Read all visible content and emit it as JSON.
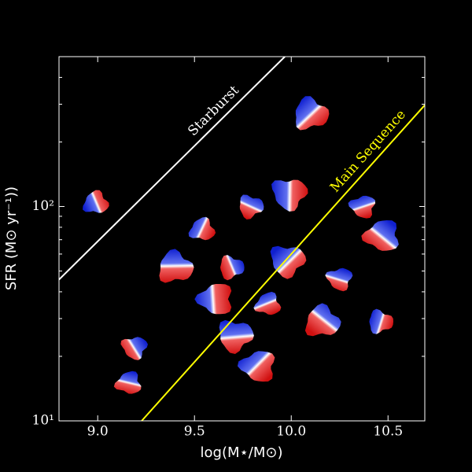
{
  "chart_data": {
    "type": "scatter",
    "x_label": "log(M⋆/M⊙)",
    "y_label": "SFR (M⊙ yr⁻¹))",
    "xlim": [
      8.8,
      10.69
    ],
    "ylim": [
      10,
      500
    ],
    "log_y": true,
    "xticks": [
      {
        "value": 9,
        "label": "9.0"
      },
      9.5,
      {
        "value": 10,
        "label": "10.0"
      },
      10.5
    ],
    "yticks": [
      {
        "value": 10,
        "label": "10¹"
      },
      {
        "value": 100,
        "label": "10²"
      }
    ],
    "yminorticks": [
      20,
      30,
      40,
      50,
      60,
      70,
      80,
      90,
      200,
      300,
      400
    ],
    "x": [
      8.99,
      10.1,
      9.79,
      9.99,
      10.37,
      10.47,
      9.54,
      9.4,
      9.69,
      9.98,
      10.25,
      9.61,
      9.88,
      10.16,
      10.46,
      9.71,
      9.19,
      9.83,
      9.16
    ],
    "values": [
      104,
      270,
      100,
      115,
      100,
      73,
      78,
      52,
      52,
      56,
      46,
      37,
      35,
      29,
      29,
      25,
      22,
      18,
      15
    ],
    "lines": [
      {
        "name": "Starburst",
        "color": "#ffffff",
        "x": [
          8.8,
          9.967
        ],
        "y": [
          45.6,
          500
        ]
      },
      {
        "name": "Main Sequence",
        "color": "#ffff00",
        "x": [
          9.227,
          10.69
        ],
        "y": [
          10,
          297
        ]
      }
    ]
  }
}
